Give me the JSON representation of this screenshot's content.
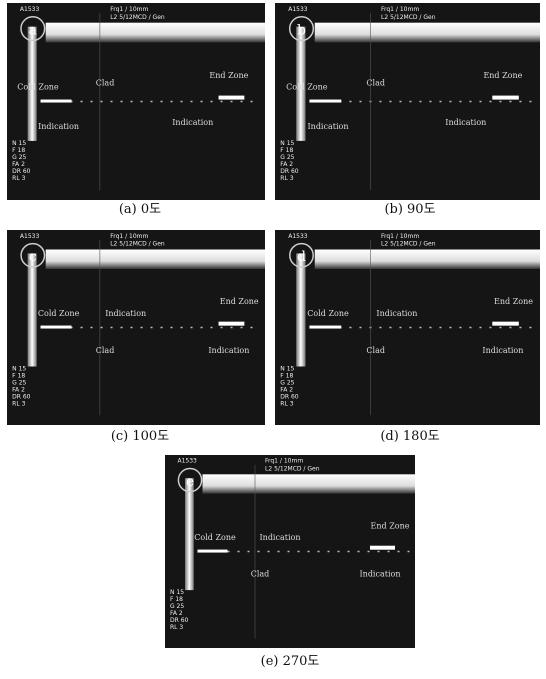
{
  "panels": [
    {
      "letter": "a",
      "caption": "(a) 0도",
      "header": [
        "A1533",
        "Frq1 / 10mm",
        "L2 5/12MCD / Gen"
      ],
      "params": [
        "N 15",
        "F 18",
        "G 25",
        "FA 2",
        "DR 60",
        "RL 3"
      ],
      "labels": [
        "Cold Zone",
        "Clad",
        "End Zone",
        "Indication",
        "Indication"
      ]
    },
    {
      "letter": "b",
      "caption": "(b) 90도",
      "header": [
        "A1533",
        "Frq1 / 10mm",
        "L2 5/12MCD / Gen"
      ],
      "params": [
        "N 15",
        "F 18",
        "G 25",
        "FA 2",
        "DR 60",
        "RL 3"
      ],
      "labels": [
        "Cold Zone",
        "Clad",
        "End Zone",
        "Indication",
        "Indication"
      ]
    },
    {
      "letter": "c",
      "caption": "(c) 100도",
      "header": [
        "A1533",
        "Frq1 / 10mm",
        "L2 5/12MCD / Gen"
      ],
      "params": [
        "N 15",
        "F 18",
        "G 25",
        "FA 2",
        "DR 60",
        "RL 3"
      ],
      "labels": [
        "Cold Zone",
        "Indication",
        "End Zone",
        "Clad",
        "Indication"
      ]
    },
    {
      "letter": "d",
      "caption": "(d) 180도",
      "header": [
        "A1533",
        "Frq1 / 10mm",
        "L2 5/12MCD / Gen"
      ],
      "params": [
        "N 15",
        "F 18",
        "G 25",
        "FA 2",
        "DR 60",
        "RL 3"
      ],
      "labels": [
        "Cold Zone",
        "Indication",
        "End Zone",
        "Clad",
        "Indication"
      ]
    },
    {
      "letter": "e",
      "caption": "(e) 270도",
      "header": [
        "A1533",
        "Frq1 / 10mm",
        "L2 5/12MCD / Gen"
      ],
      "params": [
        "N 15",
        "F 18",
        "G 25",
        "FA 2",
        "DR 60",
        "RL 3"
      ],
      "labels": [
        "Cold Zone",
        "Indication",
        "End Zone",
        "Clad",
        "Indication"
      ]
    }
  ]
}
